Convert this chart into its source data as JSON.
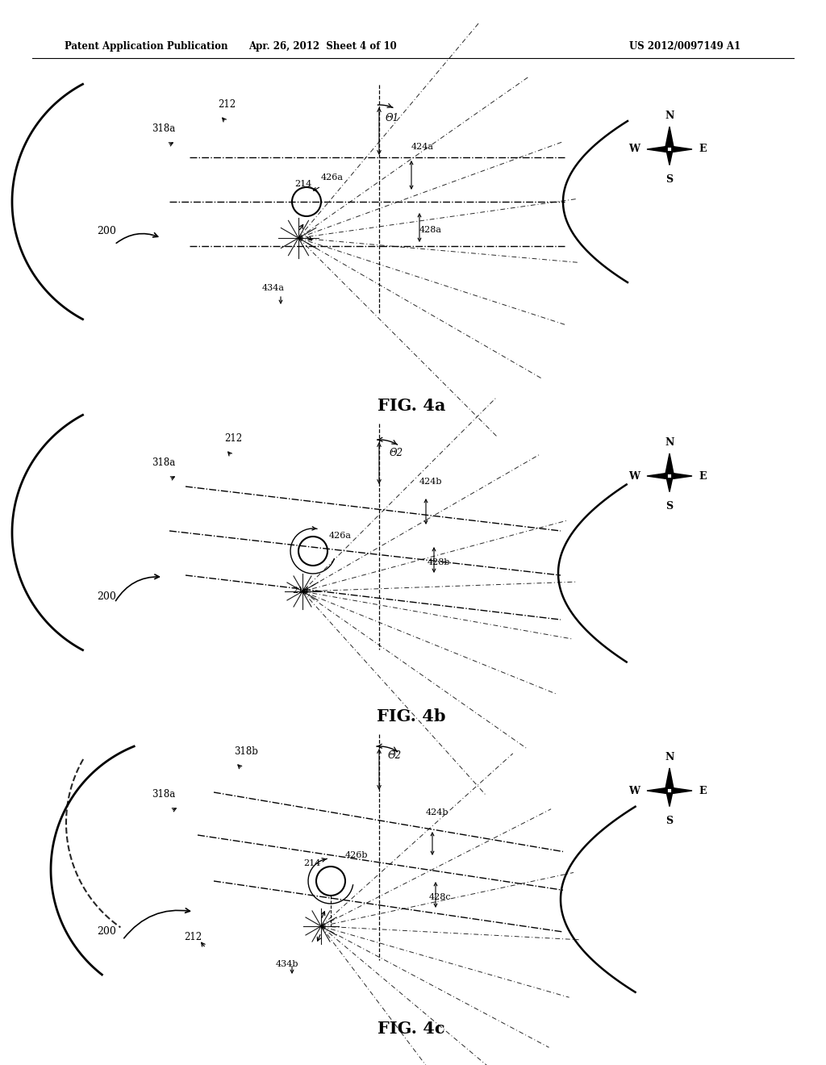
{
  "header_left": "Patent Application Publication",
  "header_center": "Apr. 26, 2012  Sheet 4 of 10",
  "header_right": "US 2012/0097149 A1",
  "background_color": "#ffffff",
  "line_color": "#000000",
  "fig_label_a": "FIG. 4a",
  "fig_label_b": "FIG. 4b",
  "fig_label_c": "FIG. 4c",
  "theta1": "Θ1",
  "theta2": "Θ2"
}
